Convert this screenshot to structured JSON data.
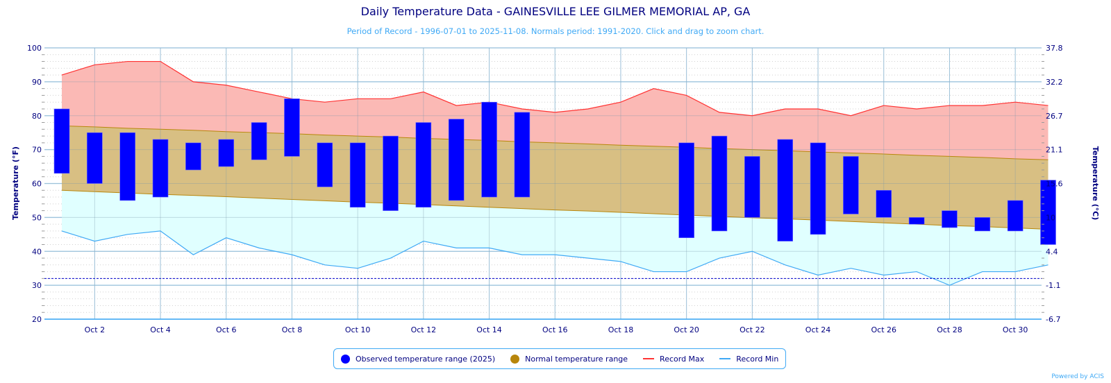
{
  "chart_data": {
    "type": "bar",
    "title": "Daily Temperature Data - GAINESVILLE LEE GILMER MEMORIAL AP, GA",
    "subtitle": "Period of Record - 1996-07-01 to 2025-11-08. Normals period: 1991-2020. Click and drag to zoom chart.",
    "ylabel": "Temperature (°F)",
    "ylabel_right": "Temperature (°C)",
    "ylim": [
      20,
      100
    ],
    "yticks": [
      20,
      30,
      40,
      50,
      60,
      70,
      80,
      90,
      100
    ],
    "yticks_right": [
      "-6.7",
      "-1.1",
      "4.4",
      "10",
      "15.6",
      "21.1",
      "26.7",
      "32.2",
      "37.8"
    ],
    "freezing_line": 32,
    "grid": true,
    "x_days": [
      1,
      2,
      3,
      4,
      5,
      6,
      7,
      8,
      9,
      10,
      11,
      12,
      13,
      14,
      15,
      16,
      17,
      18,
      19,
      20,
      21,
      22,
      23,
      24,
      25,
      26,
      27,
      28,
      29,
      30,
      31
    ],
    "xticks": [
      "Oct 2",
      "Oct 4",
      "Oct 6",
      "Oct 8",
      "Oct 10",
      "Oct 12",
      "Oct 14",
      "Oct 16",
      "Oct 18",
      "Oct 20",
      "Oct 22",
      "Oct 24",
      "Oct 26",
      "Oct 28",
      "Oct 30"
    ],
    "xtick_days": [
      2,
      4,
      6,
      8,
      10,
      12,
      14,
      16,
      18,
      20,
      22,
      24,
      26,
      28,
      30
    ],
    "series": [
      {
        "name": "Record Max",
        "type": "line",
        "color": "#ff3333",
        "values": [
          92,
          95,
          96,
          96,
          90,
          89,
          87,
          85,
          84,
          85,
          85,
          87,
          83,
          84,
          82,
          81,
          82,
          84,
          88,
          86,
          81,
          80,
          82,
          82,
          80,
          83,
          82,
          83,
          83,
          84,
          83
        ]
      },
      {
        "name": "Record Min",
        "type": "line",
        "color": "#3fa9f5",
        "values": [
          46,
          43,
          45,
          46,
          39,
          44,
          41,
          39,
          36,
          35,
          38,
          43,
          41,
          41,
          39,
          39,
          38,
          37,
          34,
          34,
          38,
          40,
          36,
          33,
          35,
          33,
          34,
          30,
          34,
          34,
          36
        ]
      },
      {
        "name": "Normal temperature range",
        "type": "area-range",
        "color": "#b8860b",
        "high": [
          77,
          76.7,
          76.3,
          76,
          75.7,
          75.3,
          75,
          74.7,
          74.3,
          74,
          73.7,
          73.3,
          73,
          72.7,
          72.3,
          72,
          71.7,
          71.3,
          71,
          70.7,
          70.3,
          70,
          69.7,
          69.3,
          69,
          68.7,
          68.3,
          68,
          67.7,
          67.3,
          67
        ],
        "low": [
          58,
          57.6,
          57.2,
          56.8,
          56.5,
          56.1,
          55.7,
          55.3,
          54.9,
          54.5,
          54.2,
          53.8,
          53.4,
          53,
          52.6,
          52.2,
          51.9,
          51.5,
          51.1,
          50.7,
          50.3,
          49.9,
          49.6,
          49.2,
          48.8,
          48.4,
          48,
          47.6,
          47.3,
          46.9,
          46.5
        ]
      },
      {
        "name": "Observed temperature range (2025)",
        "type": "column-range",
        "color": "#0000ff",
        "high": [
          82,
          75,
          75,
          73,
          72,
          73,
          78,
          85,
          72,
          72,
          74,
          78,
          79,
          84,
          81,
          null,
          null,
          null,
          null,
          72,
          74,
          68,
          73,
          72,
          68,
          58,
          50,
          52,
          50,
          55,
          61
        ],
        "low": [
          63,
          60,
          55,
          56,
          64,
          65,
          67,
          68,
          59,
          53,
          52,
          53,
          55,
          56,
          56,
          null,
          null,
          null,
          null,
          44,
          46,
          50,
          43,
          45,
          51,
          50,
          48,
          47,
          46,
          46,
          42
        ]
      }
    ],
    "legend": [
      {
        "label": "Observed temperature range (2025)",
        "symbol": "dot",
        "color": "#0000ff"
      },
      {
        "label": "Normal temperature range",
        "symbol": "dot",
        "color": "#b8860b"
      },
      {
        "label": "Record Max",
        "symbol": "line",
        "color": "#ff3333"
      },
      {
        "label": "Record Min",
        "symbol": "line",
        "color": "#3fa9f5"
      }
    ],
    "legend_position": "bottom-center"
  },
  "credit": "Powered by ACIS"
}
